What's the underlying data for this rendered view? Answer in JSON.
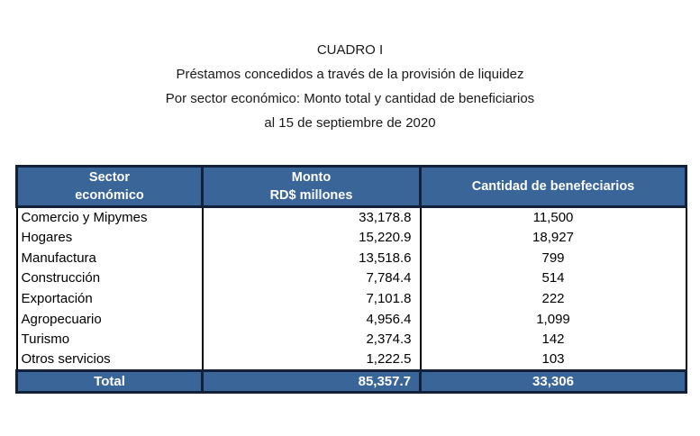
{
  "title": {
    "line1": "CUADRO I",
    "line2": "Préstamos concedidos a través de la provisión de liquidez",
    "line3": "Por sector económico: Monto total y cantidad de beneficiarios",
    "line4": "al 15 de septiembre de 2020"
  },
  "table": {
    "header": {
      "col1_line1": "Sector",
      "col1_line2": "económico",
      "col2_line1": "Monto",
      "col2_line2": "RD$ millones",
      "col3": "Cantidad de benefeciarios"
    },
    "rows": [
      {
        "sector": "Comercio y Mipymes",
        "monto": "33,178.8",
        "beneficiarios": "11,500"
      },
      {
        "sector": "Hogares",
        "monto": "15,220.9",
        "beneficiarios": "18,927"
      },
      {
        "sector": "Manufactura",
        "monto": "13,518.6",
        "beneficiarios": "799"
      },
      {
        "sector": "Construcción",
        "monto": "7,784.4",
        "beneficiarios": "514"
      },
      {
        "sector": "Exportación",
        "monto": "7,101.8",
        "beneficiarios": "222"
      },
      {
        "sector": "Agropecuario",
        "monto": "4,956.4",
        "beneficiarios": "1,099"
      },
      {
        "sector": "Turismo",
        "monto": "2,374.3",
        "beneficiarios": "142"
      },
      {
        "sector": "Otros servicios",
        "monto": "1,222.5",
        "beneficiarios": "103"
      }
    ],
    "total": {
      "label": "Total",
      "monto": "85,357.7",
      "beneficiarios": "33,306"
    },
    "colors": {
      "header_bg": "#3A6598",
      "header_text": "#FFFFFF",
      "dark_border": "#12203A",
      "body_border": "#000000"
    }
  }
}
